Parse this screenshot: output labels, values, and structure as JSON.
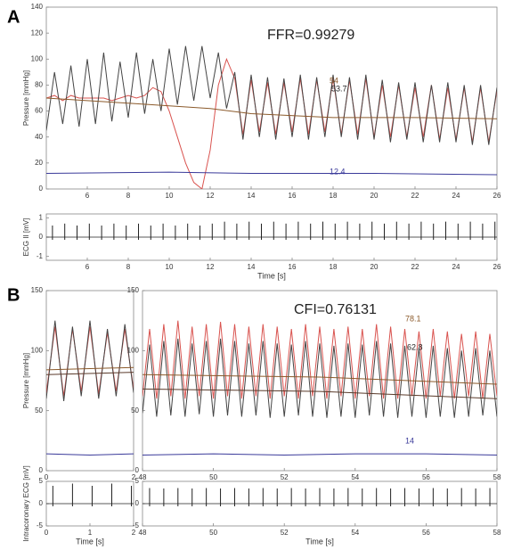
{
  "panels": [
    "A",
    "B"
  ],
  "chart_data": [
    {
      "type": "line",
      "ylabel": "Pressure [mmHg]",
      "annotations": [
        "FFR=0.99279",
        "54",
        "53.7",
        "12.4"
      ],
      "xlim": [
        4,
        26
      ],
      "xticks": [
        6,
        8,
        10,
        12,
        14,
        16,
        18,
        20,
        22,
        24,
        26
      ],
      "ylim": [
        0,
        140
      ],
      "yticks": [
        0,
        20,
        40,
        60,
        80,
        100,
        120,
        140
      ],
      "series": [
        {
          "color": "#d9534f",
          "x": [
            4,
            4.4,
            4.8,
            5.2,
            5.6,
            6,
            6.4,
            6.8,
            7.2,
            7.6,
            8,
            8.4,
            8.8,
            9.2,
            9.6,
            10,
            10.4,
            10.8,
            11.2,
            11.6,
            12,
            12.4,
            12.8,
            13.2,
            13.6,
            14,
            14.4,
            14.8,
            15.2,
            15.6,
            16,
            16.4,
            16.8,
            17.2,
            17.6,
            18,
            18.4,
            18.8,
            19.2,
            19.6,
            20,
            20.4,
            20.8,
            21.2,
            21.6,
            22,
            22.4,
            22.8,
            23.2,
            23.6,
            24,
            24.4,
            24.8,
            25.2,
            25.6,
            26
          ],
          "values": [
            70,
            72,
            68,
            72,
            70,
            70,
            70,
            70,
            68,
            70,
            72,
            70,
            72,
            78,
            75,
            60,
            40,
            20,
            5,
            0,
            30,
            80,
            100,
            85,
            42,
            84,
            44,
            82,
            42,
            82,
            44,
            85,
            42,
            84,
            44,
            85,
            42,
            84,
            42,
            85,
            40,
            80,
            40,
            80,
            40,
            78,
            40,
            80,
            38,
            78,
            38,
            78,
            36,
            78,
            36,
            76
          ]
        },
        {
          "color": "#444444",
          "x": [
            4,
            4.4,
            4.8,
            5.2,
            5.6,
            6,
            6.4,
            6.8,
            7.2,
            7.6,
            8,
            8.4,
            8.8,
            9.2,
            9.6,
            10,
            10.4,
            10.8,
            11.2,
            11.6,
            12,
            12.4,
            12.8,
            13.2,
            13.6,
            14,
            14.4,
            14.8,
            15.2,
            15.6,
            16,
            16.4,
            16.8,
            17.2,
            17.6,
            18,
            18.4,
            18.8,
            19.2,
            19.6,
            20,
            20.4,
            20.8,
            21.2,
            21.6,
            22,
            22.4,
            22.8,
            23.2,
            23.6,
            24,
            24.4,
            24.8,
            25.2,
            25.6,
            26
          ],
          "values": [
            45,
            90,
            50,
            95,
            48,
            100,
            50,
            105,
            52,
            98,
            55,
            105,
            58,
            100,
            60,
            108,
            65,
            110,
            68,
            110,
            70,
            105,
            62,
            90,
            38,
            88,
            40,
            86,
            38,
            85,
            40,
            88,
            38,
            86,
            40,
            88,
            40,
            86,
            38,
            88,
            38,
            84,
            36,
            82,
            38,
            82,
            36,
            80,
            36,
            82,
            36,
            80,
            34,
            80,
            34,
            78
          ]
        },
        {
          "color": "#8b5a2b",
          "x": [
            4,
            8,
            12,
            14,
            18,
            22,
            26
          ],
          "values": [
            70,
            66,
            62,
            58,
            55,
            55,
            54
          ]
        },
        {
          "color": "#3a3a9a",
          "x": [
            4,
            10,
            14,
            20,
            26
          ],
          "values": [
            12,
            13,
            12,
            12,
            11
          ]
        }
      ]
    },
    {
      "type": "stem",
      "ylabel": "ECG II [mV]",
      "xlabel": "Time [s]",
      "xlim": [
        4,
        26
      ],
      "xticks": [
        6,
        8,
        10,
        12,
        14,
        16,
        18,
        20,
        22,
        24,
        26
      ],
      "ylim": [
        -1.2,
        1.2
      ],
      "yticks": [
        -1,
        0,
        1
      ],
      "series": [
        {
          "color": "#222222",
          "x": [
            4.3,
            4.9,
            5.5,
            6.1,
            6.7,
            7.3,
            7.9,
            8.5,
            9.1,
            9.7,
            10.3,
            10.9,
            11.5,
            12.1,
            12.7,
            13.3,
            13.9,
            14.5,
            15.1,
            15.7,
            16.3,
            16.9,
            17.5,
            18.1,
            18.7,
            19.3,
            19.9,
            20.5,
            21.1,
            21.7,
            22.3,
            22.9,
            23.5,
            24.1,
            24.7,
            25.3,
            25.9
          ],
          "values": [
            0.6,
            0.7,
            0.6,
            0.7,
            0.6,
            0.7,
            0.6,
            0.7,
            0.6,
            0.7,
            0.6,
            0.7,
            0.6,
            0.7,
            0.8,
            0.7,
            0.8,
            0.7,
            0.8,
            0.7,
            0.8,
            0.7,
            0.8,
            0.7,
            0.8,
            0.7,
            0.8,
            0.7,
            0.8,
            0.7,
            0.8,
            0.7,
            0.8,
            0.7,
            0.8,
            0.7,
            0.8
          ]
        }
      ]
    },
    {
      "type": "line",
      "ylabel": "Pressure [mmHg]",
      "xlim": [
        0,
        2
      ],
      "xticks": [
        0,
        2
      ],
      "ylim": [
        0,
        150
      ],
      "yticks": [
        0,
        50,
        100,
        150
      ],
      "series": [
        {
          "color": "#d9534f",
          "x": [
            0,
            0.2,
            0.4,
            0.6,
            0.8,
            1,
            1.2,
            1.4,
            1.6,
            1.8,
            2
          ],
          "values": [
            65,
            120,
            62,
            118,
            66,
            120,
            64,
            115,
            66,
            118,
            68
          ]
        },
        {
          "color": "#444444",
          "x": [
            0,
            0.2,
            0.4,
            0.6,
            0.8,
            1,
            1.2,
            1.4,
            1.6,
            1.8,
            2
          ],
          "values": [
            60,
            125,
            58,
            120,
            62,
            125,
            60,
            118,
            62,
            122,
            65
          ]
        },
        {
          "color": "#8b5a2b",
          "x": [
            0,
            2
          ],
          "values": [
            84,
            86
          ]
        },
        {
          "color": "#5a3a2a",
          "x": [
            0,
            2
          ],
          "values": [
            80,
            82
          ]
        },
        {
          "color": "#3a3a9a",
          "x": [
            0,
            1,
            2
          ],
          "values": [
            14,
            13,
            14
          ]
        }
      ]
    },
    {
      "type": "line",
      "annotations": [
        "CFI=0.76131",
        "78.1",
        "62.8",
        "14"
      ],
      "xlim": [
        48,
        58
      ],
      "xticks": [
        48,
        50,
        52,
        54,
        56,
        58
      ],
      "ylim": [
        0,
        150
      ],
      "yticks": [
        0,
        50,
        100,
        150
      ],
      "series": [
        {
          "color": "#d9534f",
          "x": [
            48,
            48.2,
            48.4,
            48.6,
            48.8,
            49,
            49.2,
            49.4,
            49.6,
            49.8,
            50,
            50.2,
            50.4,
            50.6,
            50.8,
            51,
            51.2,
            51.4,
            51.6,
            51.8,
            52,
            52.2,
            52.4,
            52.6,
            52.8,
            53,
            53.2,
            53.4,
            53.6,
            53.8,
            54,
            54.2,
            54.4,
            54.6,
            54.8,
            55,
            55.2,
            55.4,
            55.6,
            55.8,
            56,
            56.2,
            56.4,
            56.6,
            56.8,
            57,
            57.2,
            57.4,
            57.6,
            57.8,
            58
          ],
          "values": [
            62,
            118,
            60,
            122,
            62,
            125,
            60,
            120,
            62,
            122,
            60,
            124,
            62,
            122,
            60,
            120,
            62,
            122,
            60,
            120,
            62,
            118,
            60,
            122,
            62,
            120,
            60,
            118,
            62,
            120,
            60,
            118,
            62,
            122,
            60,
            120,
            60,
            118,
            62,
            116,
            60,
            118,
            62,
            116,
            60,
            114,
            62,
            116,
            60,
            114,
            62
          ]
        },
        {
          "color": "#444444",
          "x": [
            48,
            48.2,
            48.4,
            48.6,
            48.8,
            49,
            49.2,
            49.4,
            49.6,
            49.8,
            50,
            50.2,
            50.4,
            50.6,
            50.8,
            51,
            51.2,
            51.4,
            51.6,
            51.8,
            52,
            52.2,
            52.4,
            52.6,
            52.8,
            53,
            53.2,
            53.4,
            53.6,
            53.8,
            54,
            54.2,
            54.4,
            54.6,
            54.8,
            55,
            55.2,
            55.4,
            55.6,
            55.8,
            56,
            56.2,
            56.4,
            56.6,
            56.8,
            57,
            57.2,
            57.4,
            57.6,
            57.8,
            58
          ],
          "values": [
            48,
            105,
            45,
            108,
            46,
            110,
            45,
            106,
            47,
            108,
            45,
            110,
            46,
            108,
            45,
            106,
            46,
            108,
            44,
            106,
            45,
            105,
            46,
            108,
            45,
            106,
            44,
            104,
            45,
            106,
            44,
            105,
            46,
            108,
            45,
            106,
            44,
            104,
            45,
            102,
            44,
            104,
            45,
            102,
            44,
            100,
            45,
            102,
            46,
            100,
            45
          ]
        },
        {
          "color": "#8b5a2b",
          "x": [
            48,
            53,
            58
          ],
          "values": [
            80,
            78,
            72
          ]
        },
        {
          "color": "#5a3a2a",
          "x": [
            48,
            53,
            58
          ],
          "values": [
            68,
            66,
            60
          ]
        },
        {
          "color": "#3a3a9a",
          "x": [
            48,
            50,
            52,
            54,
            56,
            58
          ],
          "values": [
            13,
            14,
            13,
            14,
            14,
            13
          ]
        }
      ]
    },
    {
      "type": "stem",
      "ylabel": "Intracoronary ECG [mV]",
      "xlabel": "Time [s]",
      "xlim": [
        0,
        2
      ],
      "xticks": [
        0,
        1,
        2
      ],
      "ylim": [
        -5,
        5
      ],
      "yticks": [
        -5,
        0,
        5
      ],
      "series": [
        {
          "color": "#222222",
          "x": [
            0.15,
            0.6,
            1.05,
            1.5,
            1.95
          ],
          "values": [
            4,
            4.5,
            4,
            4.5,
            4
          ]
        }
      ]
    },
    {
      "type": "stem",
      "xlabel": "Time [s]",
      "xlim": [
        48,
        58
      ],
      "xticks": [
        48,
        50,
        52,
        54,
        56,
        58
      ],
      "ylim": [
        -5,
        5
      ],
      "yticks": [
        -5,
        0,
        5
      ],
      "series": [
        {
          "color": "#222222",
          "x": [
            48.2,
            48.6,
            49,
            49.4,
            49.8,
            50.2,
            50.6,
            51,
            51.4,
            51.8,
            52.2,
            52.6,
            53,
            53.4,
            53.8,
            54.2,
            54.6,
            55,
            55.4,
            55.8,
            56.2,
            56.6,
            57,
            57.4,
            57.8
          ],
          "values": [
            3.5,
            3.4,
            3.5,
            3.4,
            3.5,
            3.4,
            3.5,
            3.4,
            3.5,
            3.4,
            3.5,
            3.4,
            3.5,
            3.4,
            3.5,
            3.4,
            3.5,
            3.4,
            3.5,
            3.4,
            3.5,
            3.4,
            3.5,
            3.4,
            3.5
          ]
        }
      ]
    }
  ]
}
